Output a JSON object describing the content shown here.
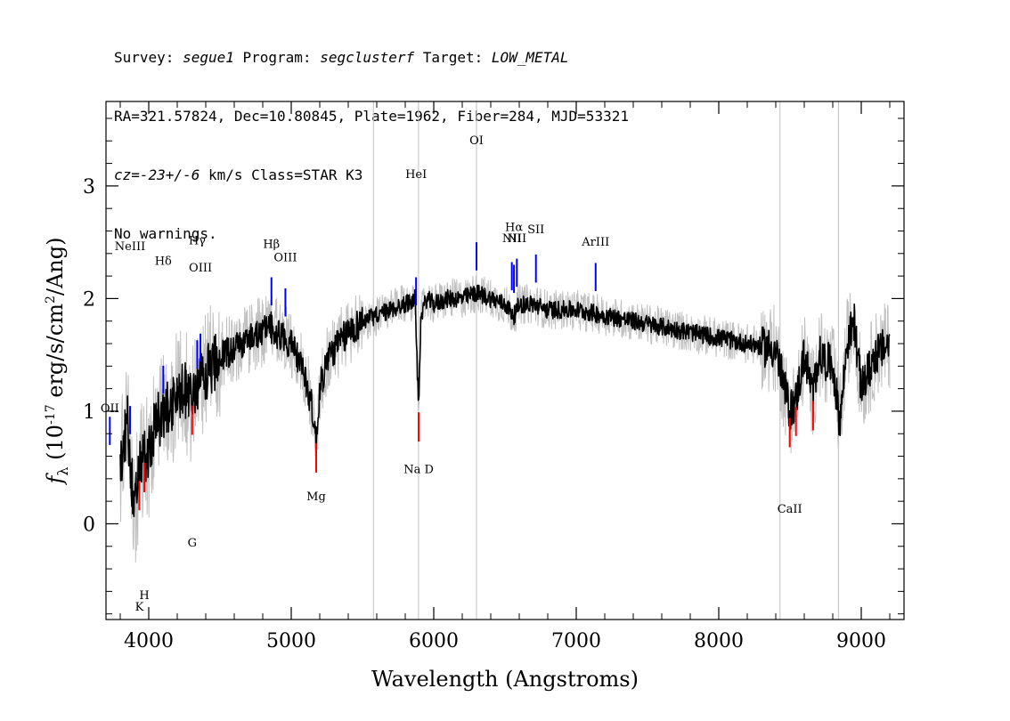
{
  "header": {
    "l1_survey_label": "Survey: ",
    "l1_survey": "segue1",
    "l1_program_label": " Program: ",
    "l1_program": "segclusterf",
    "l1_target_label": " Target: ",
    "l1_target": "LOW_METAL",
    "l2": "RA=321.57824, Dec=10.80845, Plate=1962, Fiber=284, MJD=53321",
    "l3_cz": "cz=-23+/-6",
    "l3_rest": " km/s Class=STAR K3",
    "l4": "No warnings."
  },
  "colors": {
    "flux": "#000000",
    "error": "#c0c0c0",
    "emission_marker": "#0000ff",
    "absorption_marker": "#ff0000"
  },
  "chart_data": {
    "type": "line",
    "xlabel": "Wavelength (Angstroms)",
    "ylabel": "f_λ (10^-17 erg/s/cm^2/Ang)",
    "xlim": [
      3700,
      9300
    ],
    "ylim": [
      -0.85,
      3.75
    ],
    "x_ticks": [
      4000,
      5000,
      6000,
      7000,
      8000,
      9000
    ],
    "y_ticks": [
      0,
      1,
      2,
      3
    ],
    "series": [
      {
        "role": "flux",
        "x": [
          3800,
          3850,
          3900,
          3950,
          4000,
          4050,
          4100,
          4150,
          4200,
          4250,
          4300,
          4350,
          4400,
          4450,
          4500,
          4600,
          4700,
          4800,
          4850,
          4900,
          4950,
          5000,
          5050,
          5100,
          5150,
          5170,
          5180,
          5200,
          5250,
          5300,
          5400,
          5500,
          5600,
          5700,
          5800,
          5870,
          5893,
          5910,
          5950,
          6000,
          6100,
          6200,
          6300,
          6400,
          6500,
          6563,
          6600,
          6700,
          6800,
          6900,
          7000,
          7200,
          7400,
          7600,
          7800,
          8000,
          8200,
          8400,
          8498,
          8542,
          8600,
          8662,
          8700,
          8800,
          8850,
          8900,
          8950,
          9000,
          9100,
          9200
        ],
        "y": [
          0.5,
          0.9,
          0.1,
          0.6,
          0.6,
          0.9,
          0.95,
          1.05,
          1.15,
          1.2,
          1.1,
          1.2,
          1.35,
          1.4,
          1.5,
          1.55,
          1.65,
          1.7,
          1.75,
          1.7,
          1.65,
          1.6,
          1.45,
          1.3,
          1.0,
          0.75,
          0.8,
          1.2,
          1.45,
          1.55,
          1.7,
          1.8,
          1.85,
          1.9,
          1.95,
          2.0,
          1.0,
          1.85,
          2.0,
          1.95,
          2.0,
          2.0,
          2.05,
          2.0,
          1.95,
          1.85,
          1.95,
          1.95,
          1.9,
          1.9,
          1.9,
          1.85,
          1.8,
          1.75,
          1.7,
          1.65,
          1.6,
          1.55,
          1.0,
          1.1,
          1.5,
          1.15,
          1.5,
          1.4,
          0.9,
          1.6,
          1.8,
          1.2,
          1.5,
          1.6
        ]
      }
    ],
    "lines": [
      {
        "label": "NeIII",
        "wave": 3869,
        "kind": "emission",
        "y_label": 2.43
      },
      {
        "label": "Hδ",
        "wave": 4102,
        "kind": "emission",
        "y_label": 2.3
      },
      {
        "label": "Hγ",
        "wave": 4340,
        "kind": "emission",
        "y_label": 2.48
      },
      {
        "label": "OIII",
        "wave": 4363,
        "kind": "emission",
        "y_label": 2.24
      },
      {
        "label": "Hβ",
        "wave": 4861,
        "kind": "emission",
        "y_label": 2.45
      },
      {
        "label": "OIII",
        "wave": 4959,
        "kind": "emission",
        "y_label": 2.33
      },
      {
        "label": "HeI",
        "wave": 5876,
        "kind": "emission",
        "y_label": 3.07
      },
      {
        "label": "OI",
        "wave": 6300,
        "kind": "emission",
        "y_label": 3.37
      },
      {
        "label": "NII",
        "wave": 6548,
        "kind": "emission",
        "y_label": 2.5
      },
      {
        "label": "Hα",
        "wave": 6563,
        "kind": "emission",
        "y_label": 2.6
      },
      {
        "label": "NII",
        "wave": 6583,
        "kind": "emission",
        "y_label": 2.5
      },
      {
        "label": "SII",
        "wave": 6717,
        "kind": "emission",
        "y_label": 2.58
      },
      {
        "label": "ArIII",
        "wave": 7136,
        "kind": "emission",
        "y_label": 2.47
      },
      {
        "label": "OII",
        "wave": 3727,
        "kind": "emission",
        "y_label": 0.99
      },
      {
        "label": "K",
        "wave": 3934,
        "kind": "absorption",
        "y_label": -0.77
      },
      {
        "label": "H",
        "wave": 3969,
        "kind": "absorption",
        "y_label": -0.67
      },
      {
        "label": "G",
        "wave": 4305,
        "kind": "absorption",
        "y_label": -0.2
      },
      {
        "label": "Mg",
        "wave": 5175,
        "kind": "absorption",
        "y_label": 0.21
      },
      {
        "label": "Na D",
        "wave": 5894,
        "kind": "absorption",
        "y_label": 0.45
      },
      {
        "label": "CaII",
        "wave": 8498,
        "kind": "absorption",
        "y_label": 0.1
      },
      {
        "label": "CaII",
        "wave": 8542,
        "kind": "absorption",
        "y_label": null
      },
      {
        "label": "CaII",
        "wave": 8662,
        "kind": "absorption",
        "y_label": null
      }
    ],
    "grid": false,
    "legend": "none"
  }
}
